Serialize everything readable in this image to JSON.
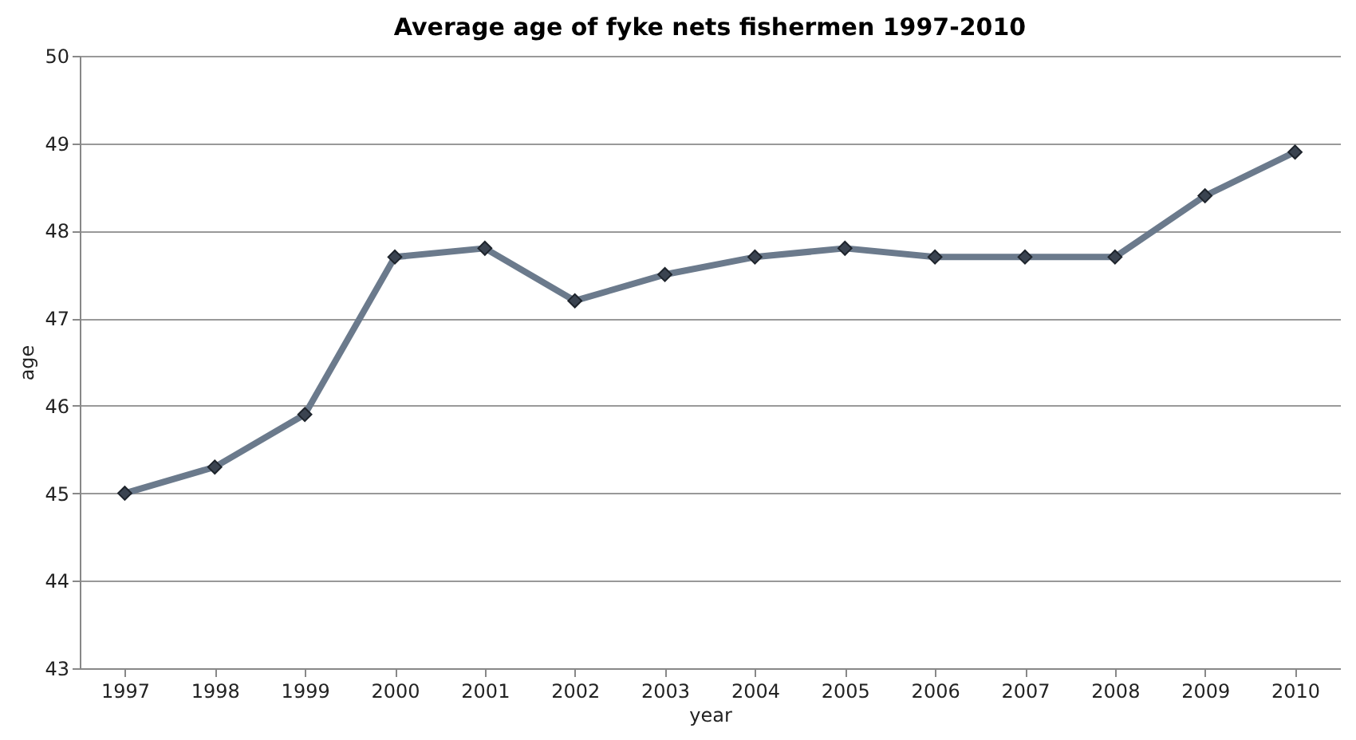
{
  "chart_data": {
    "type": "line",
    "title": "Average age of fyke nets fishermen 1997-2010",
    "xlabel": "year",
    "ylabel": "age",
    "categories": [
      "1997",
      "1998",
      "1999",
      "2000",
      "2001",
      "2002",
      "2003",
      "2004",
      "2005",
      "2006",
      "2007",
      "2008",
      "2009",
      "2010"
    ],
    "series": [
      {
        "color": "#6b7a8c",
        "values": [
          45.0,
          45.3,
          45.9,
          47.7,
          47.8,
          47.2,
          47.5,
          47.7,
          47.8,
          47.7,
          47.7,
          47.7,
          48.4,
          48.9
        ]
      }
    ],
    "ylim": [
      43,
      50
    ],
    "yticks": [
      43,
      44,
      45,
      46,
      47,
      48,
      49,
      50
    ],
    "grid": "y",
    "marker": "diamond",
    "line_style": "solid"
  }
}
